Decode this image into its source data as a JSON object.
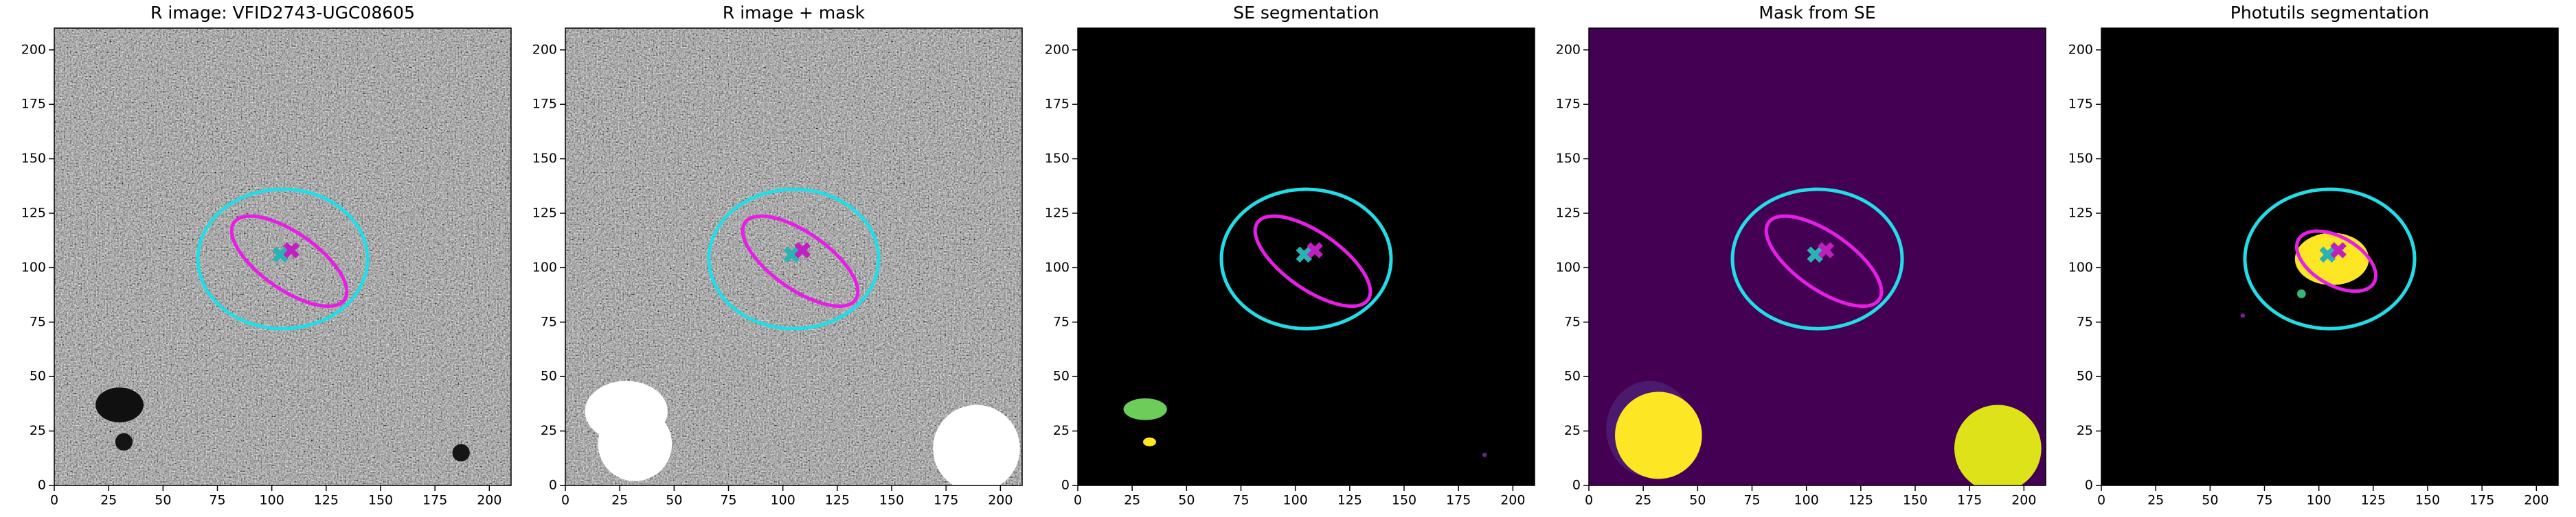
{
  "chart_data": [
    {
      "type": "image",
      "title": "R image: VFID2743-UGC08605",
      "cmap": "gray",
      "xlim": [
        0,
        210
      ],
      "ylim": [
        0,
        210
      ],
      "xticks": [
        0,
        25,
        50,
        75,
        100,
        125,
        150,
        175,
        200
      ],
      "yticks": [
        0,
        25,
        50,
        75,
        100,
        125,
        150,
        175,
        200
      ],
      "regions": [
        {
          "x": 30,
          "y": 37,
          "rx": 11,
          "ry": 8,
          "color": "#101010"
        },
        {
          "x": 32,
          "y": 20,
          "rx": 4,
          "ry": 4,
          "color": "#151515"
        },
        {
          "x": 187,
          "y": 15,
          "rx": 4,
          "ry": 4,
          "color": "#151515"
        }
      ],
      "ellipses": [
        {
          "x": 105,
          "y": 104,
          "rx": 39,
          "ry": 32,
          "angle": 0,
          "color": "#22dde8"
        },
        {
          "x": 108,
          "y": 103,
          "rx": 31,
          "ry": 13,
          "angle": -35,
          "color": "#e61ee6"
        }
      ],
      "markers": [
        {
          "x": 104,
          "y": 106,
          "color": "#2ab3b3"
        },
        {
          "x": 109,
          "y": 108,
          "color": "#c21fc2"
        }
      ]
    },
    {
      "type": "image",
      "title": "R image + mask",
      "cmap": "gray",
      "xlim": [
        0,
        210
      ],
      "ylim": [
        0,
        210
      ],
      "xticks": [
        0,
        25,
        50,
        75,
        100,
        125,
        150,
        175,
        200
      ],
      "yticks": [
        0,
        25,
        50,
        75,
        100,
        125,
        150,
        175,
        200
      ],
      "regions": [
        {
          "x": 28,
          "y": 34,
          "rx": 19,
          "ry": 14,
          "color": "#ffffff"
        },
        {
          "x": 32,
          "y": 19,
          "rx": 17,
          "ry": 17,
          "color": "#ffffff"
        },
        {
          "x": 189,
          "y": 17,
          "rx": 20,
          "ry": 20,
          "color": "#ffffff"
        }
      ],
      "ellipses": [
        {
          "x": 105,
          "y": 104,
          "rx": 39,
          "ry": 32,
          "angle": 0,
          "color": "#22dde8"
        },
        {
          "x": 108,
          "y": 103,
          "rx": 31,
          "ry": 13,
          "angle": -35,
          "color": "#e61ee6"
        }
      ],
      "markers": [
        {
          "x": 104,
          "y": 106,
          "color": "#2ab3b3"
        },
        {
          "x": 109,
          "y": 108,
          "color": "#c21fc2"
        }
      ]
    },
    {
      "type": "image",
      "title": "SE segmentation",
      "cmap": "black",
      "xlim": [
        0,
        210
      ],
      "ylim": [
        0,
        210
      ],
      "xticks": [
        0,
        25,
        50,
        75,
        100,
        125,
        150,
        175,
        200
      ],
      "yticks": [
        0,
        25,
        50,
        75,
        100,
        125,
        150,
        175,
        200
      ],
      "regions": [
        {
          "x": 31,
          "y": 35,
          "rx": 10,
          "ry": 5,
          "color": "#6ccd5a"
        },
        {
          "x": 33,
          "y": 20,
          "rx": 3,
          "ry": 2,
          "color": "#fde725"
        },
        {
          "x": 187,
          "y": 14,
          "rx": 1,
          "ry": 1,
          "color": "#5a2d8a"
        }
      ],
      "ellipses": [
        {
          "x": 105,
          "y": 104,
          "rx": 39,
          "ry": 32,
          "angle": 0,
          "color": "#22dde8"
        },
        {
          "x": 108,
          "y": 103,
          "rx": 31,
          "ry": 13,
          "angle": -35,
          "color": "#e61ee6"
        }
      ],
      "markers": [
        {
          "x": 104,
          "y": 106,
          "color": "#2ab3b3"
        },
        {
          "x": 109,
          "y": 108,
          "color": "#c21fc2"
        }
      ]
    },
    {
      "type": "image",
      "title": "Mask from SE",
      "cmap": "viridis",
      "xlim": [
        0,
        210
      ],
      "ylim": [
        0,
        210
      ],
      "xticks": [
        0,
        25,
        50,
        75,
        100,
        125,
        150,
        175,
        200
      ],
      "yticks": [
        0,
        25,
        50,
        75,
        100,
        125,
        150,
        175,
        200
      ],
      "regions": [
        {
          "x": 28,
          "y": 26,
          "rx": 20,
          "ry": 22,
          "color": "#4b1a6e"
        },
        {
          "x": 32,
          "y": 23,
          "rx": 20,
          "ry": 20,
          "color": "#fde725"
        },
        {
          "x": 188,
          "y": 17,
          "rx": 20,
          "ry": 20,
          "color": "#dde318"
        }
      ],
      "ellipses": [
        {
          "x": 105,
          "y": 104,
          "rx": 39,
          "ry": 32,
          "angle": 0,
          "color": "#22dde8"
        },
        {
          "x": 108,
          "y": 103,
          "rx": 31,
          "ry": 13,
          "angle": -35,
          "color": "#e61ee6"
        }
      ],
      "markers": [
        {
          "x": 104,
          "y": 106,
          "color": "#2ab3b3"
        },
        {
          "x": 109,
          "y": 108,
          "color": "#c21fc2"
        }
      ]
    },
    {
      "type": "image",
      "title": "Photutils segmentation",
      "cmap": "black",
      "xlim": [
        0,
        210
      ],
      "ylim": [
        0,
        210
      ],
      "xticks": [
        0,
        25,
        50,
        75,
        100,
        125,
        150,
        175,
        200
      ],
      "yticks": [
        0,
        25,
        50,
        75,
        100,
        125,
        150,
        175,
        200
      ],
      "regions": [
        {
          "x": 106,
          "y": 104,
          "rx": 17,
          "ry": 12,
          "color": "#fde725"
        },
        {
          "x": 92,
          "y": 88,
          "rx": 2,
          "ry": 2,
          "color": "#35b779"
        },
        {
          "x": 65,
          "y": 78,
          "rx": 1,
          "ry": 1,
          "color": "#7a1fa2"
        }
      ],
      "ellipses": [
        {
          "x": 105,
          "y": 104,
          "rx": 39,
          "ry": 32,
          "angle": 0,
          "color": "#22dde8"
        },
        {
          "x": 108,
          "y": 103,
          "rx": 20,
          "ry": 11,
          "angle": -30,
          "color": "#e61ee6"
        }
      ],
      "markers": [
        {
          "x": 104,
          "y": 106,
          "color": "#2ab3b3"
        },
        {
          "x": 109,
          "y": 108,
          "color": "#c21fc2"
        }
      ]
    }
  ]
}
